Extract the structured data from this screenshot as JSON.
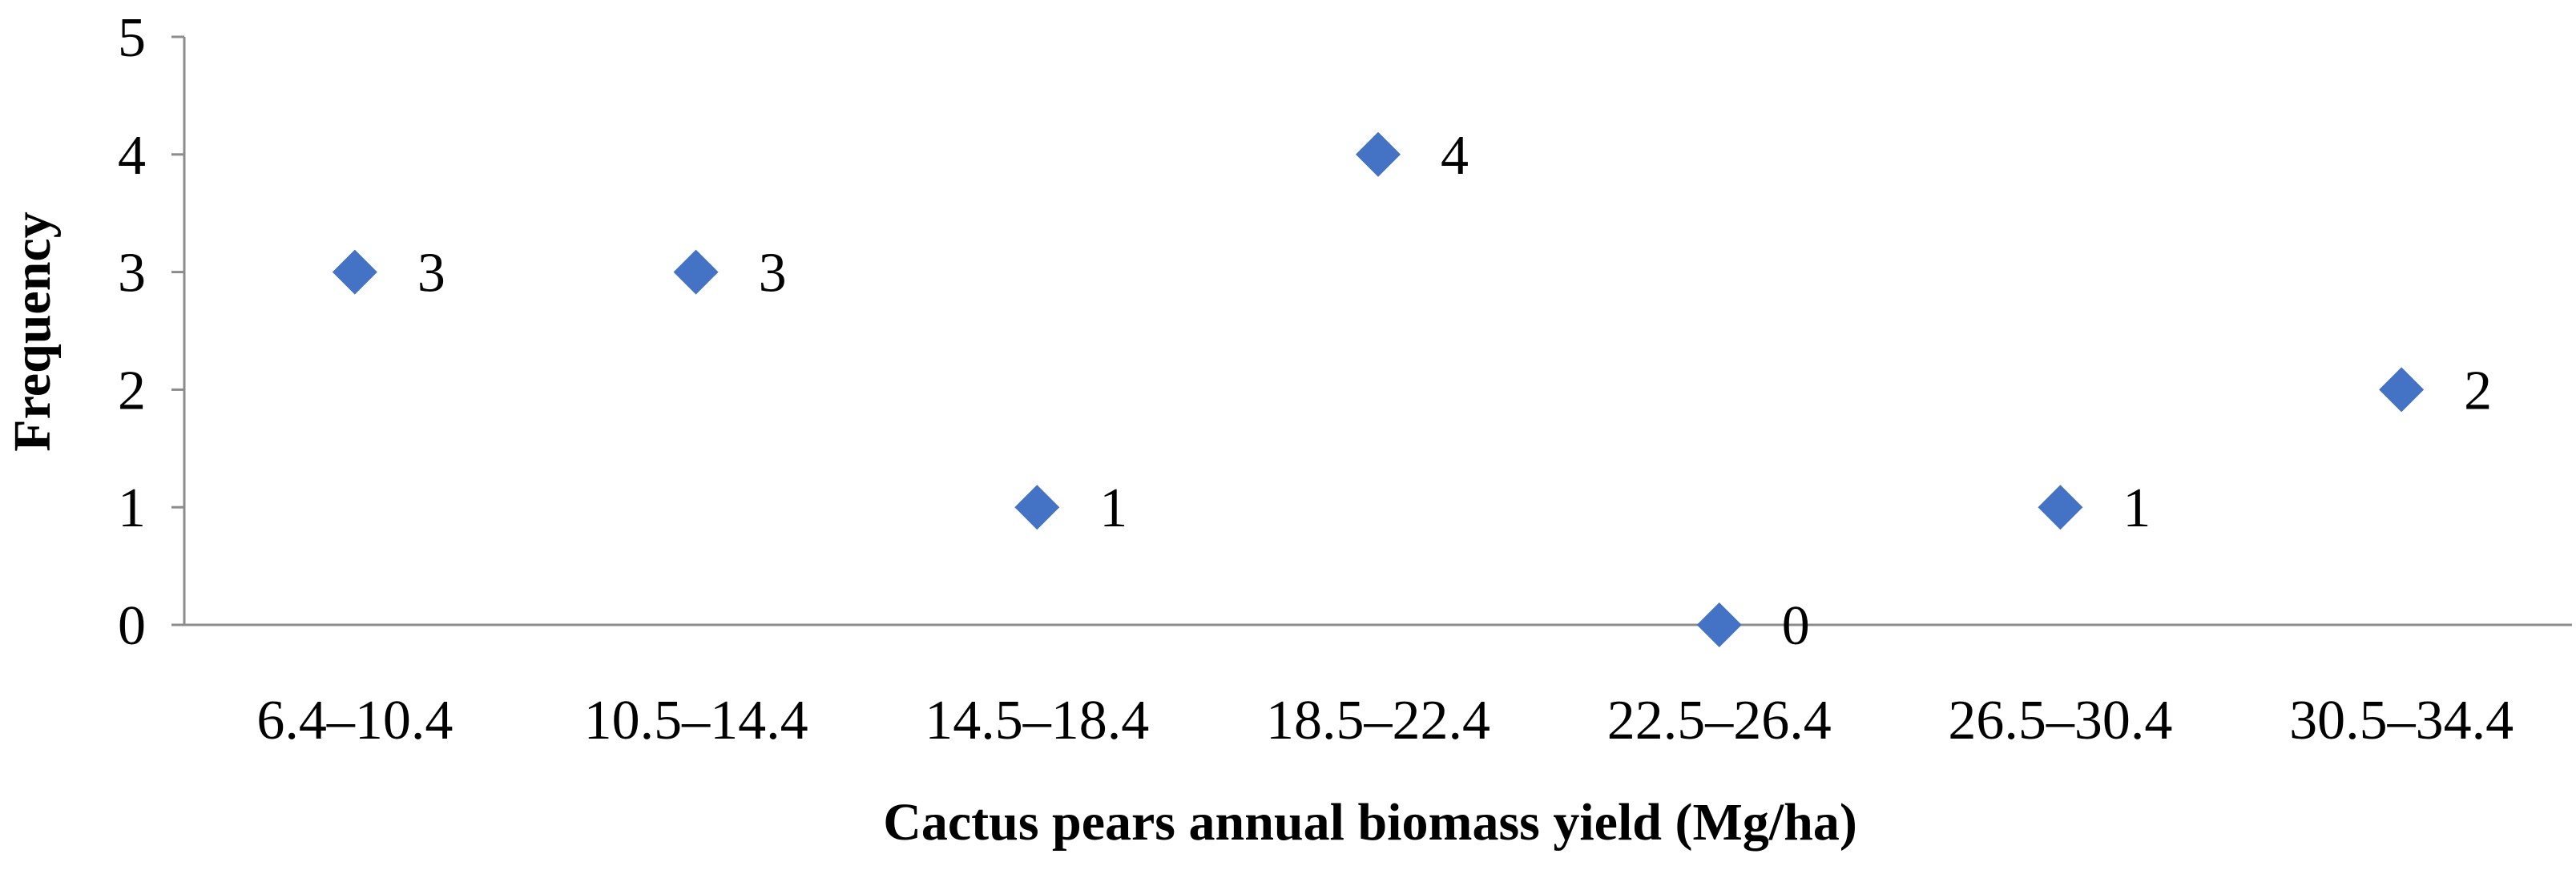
{
  "chart_data": {
    "type": "scatter",
    "xlabel": "Cactus pears annual biomass yield (Mg/ha)",
    "ylabel": "Frequency",
    "categories": [
      "6.4–10.4",
      "10.5–14.4",
      "14.5–18.4",
      "18.5–22.4",
      "22.5–26.4",
      "26.5–30.4",
      "30.5–34.4"
    ],
    "values": [
      3,
      3,
      1,
      4,
      0,
      1,
      2
    ],
    "data_labels": [
      "3",
      "3",
      "1",
      "4",
      "0",
      "1",
      "2"
    ],
    "ylim": [
      0,
      5
    ],
    "yticks": [
      "0",
      "1",
      "2",
      "3",
      "4",
      "5"
    ],
    "grid": false,
    "legend": "none",
    "marker": "diamond",
    "marker_color": "#4472C4"
  }
}
